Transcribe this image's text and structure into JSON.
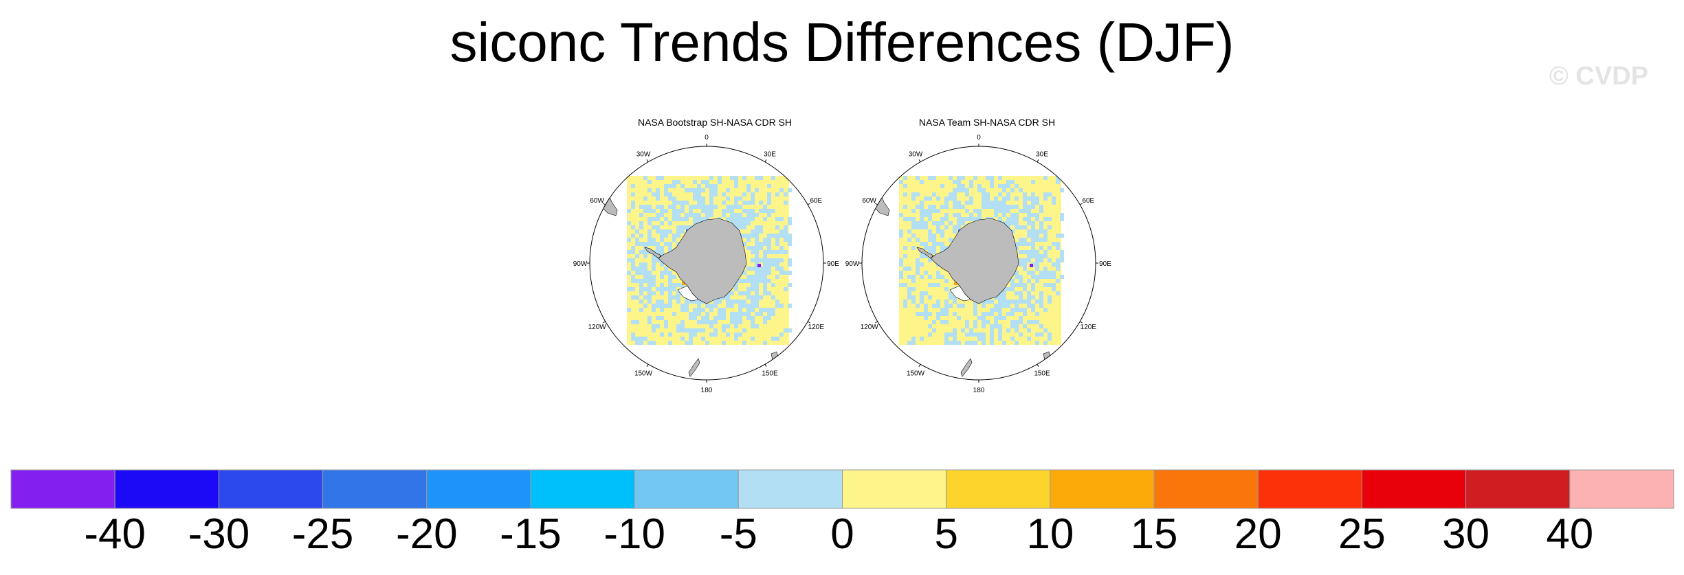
{
  "title": "siconc Trends Differences (DJF)",
  "watermark": "© CVDP",
  "panels": [
    {
      "title": "NASA Bootstrap SH-NASA CDR SH",
      "longitude_labels": [
        "0",
        "30E",
        "60E",
        "90E",
        "120E",
        "150E",
        "180",
        "150W",
        "120W",
        "90W",
        "60W",
        "30W"
      ],
      "seed": 7,
      "dominant": "positive-weak"
    },
    {
      "title": "NASA Team SH-NASA CDR SH",
      "longitude_labels": [
        "0",
        "30E",
        "60E",
        "90E",
        "120E",
        "150E",
        "180",
        "150W",
        "120W",
        "90W",
        "60W",
        "30W"
      ],
      "seed": 19,
      "dominant": "positive-weak"
    }
  ],
  "colorbar": {
    "colors": [
      "#8320f0",
      "#1c0af7",
      "#2c49ed",
      "#3275e8",
      "#1e94fa",
      "#00c0fc",
      "#73c7f3",
      "#b2dff3",
      "#fdf48a",
      "#fcd42c",
      "#fca90a",
      "#fb760a",
      "#fc310a",
      "#e8000a",
      "#cf1d21",
      "#fcb2b2"
    ],
    "labels": [
      "-40",
      "-30",
      "-25",
      "-20",
      "-15",
      "-10",
      "-5",
      "0",
      "5",
      "10",
      "15",
      "20",
      "25",
      "30",
      "40"
    ]
  },
  "colors": {
    "land": "#bcbcbc",
    "positive_weak": "#fdf48a",
    "negative_weak": "#b2dff3"
  }
}
